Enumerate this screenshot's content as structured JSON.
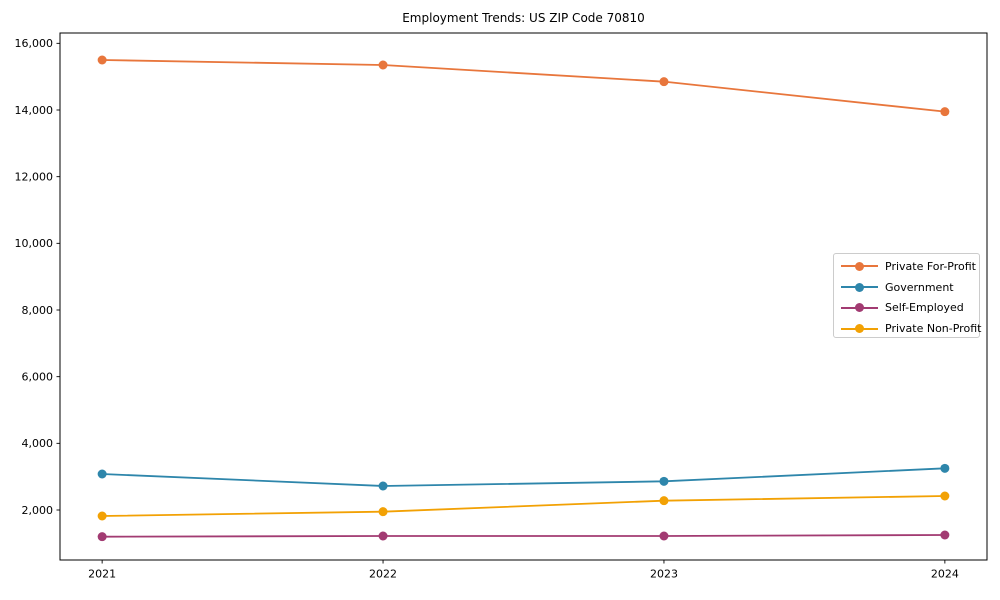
{
  "chart_data": {
    "type": "line",
    "title": "Employment Trends: US ZIP Code 70810",
    "xlabel": "",
    "ylabel": "",
    "x": [
      2021,
      2022,
      2023,
      2024
    ],
    "x_tick_labels": [
      "2021",
      "2022",
      "2023",
      "2024"
    ],
    "y_tick_values": [
      2000,
      4000,
      6000,
      8000,
      10000,
      12000,
      14000,
      16000
    ],
    "y_tick_labels": [
      "2,000",
      "4,000",
      "6,000",
      "8,000",
      "10,000",
      "12,000",
      "14,000",
      "16,000"
    ],
    "xlim": [
      2020.85,
      2024.15
    ],
    "ylim": [
      500,
      16310
    ],
    "grid": false,
    "legend_position": "center right",
    "series": [
      {
        "name": "Private For-Profit",
        "color": "#E8763C",
        "values": [
          15500,
          15350,
          14850,
          13950
        ]
      },
      {
        "name": "Government",
        "color": "#2E86AB",
        "values": [
          3080,
          2720,
          2860,
          3250
        ]
      },
      {
        "name": "Self-Employed",
        "color": "#A23B72",
        "values": [
          1200,
          1220,
          1220,
          1250
        ]
      },
      {
        "name": "Private Non-Profit",
        "color": "#F2A104",
        "values": [
          1820,
          1950,
          2280,
          2420
        ]
      }
    ]
  }
}
